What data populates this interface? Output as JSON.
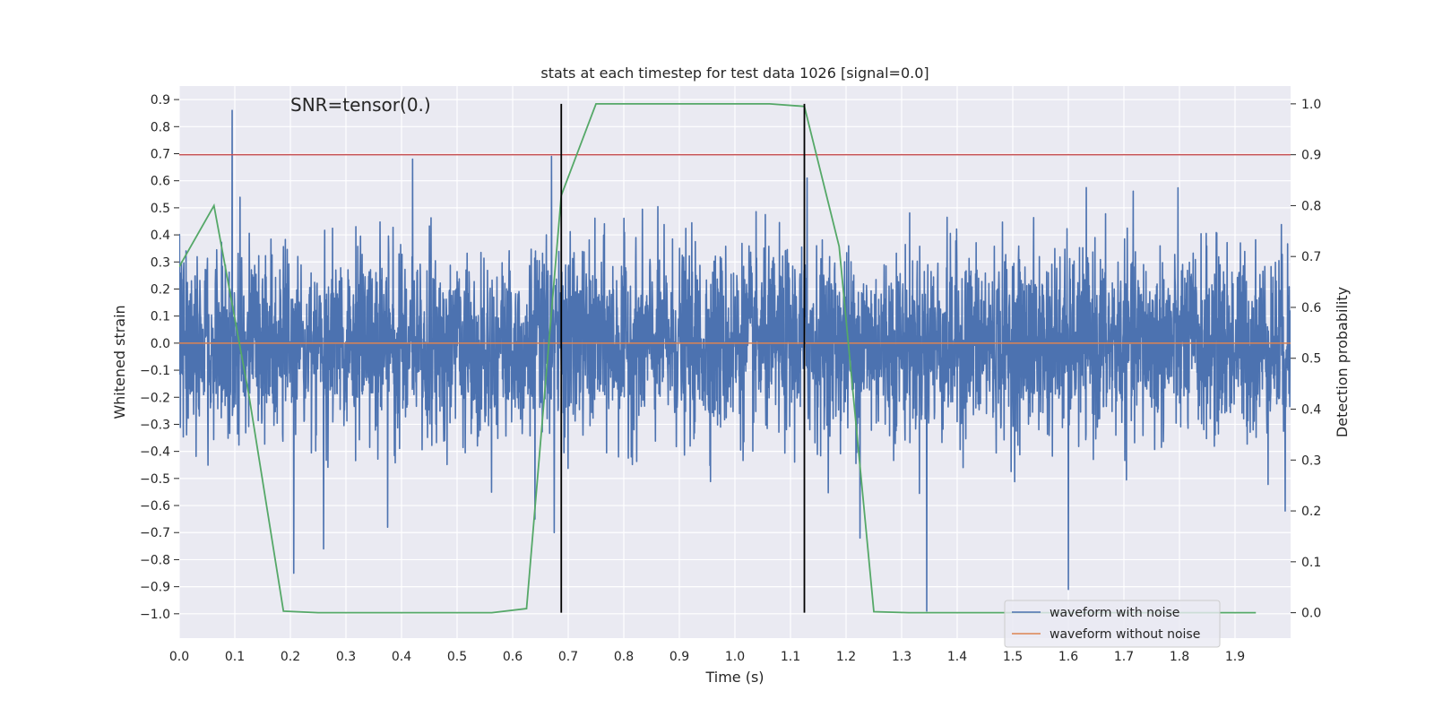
{
  "chart_data": {
    "type": "line",
    "title": "stats at each timestep for test data 1026 [signal=0.0]",
    "annotation": "SNR=tensor(0.)",
    "xlabel": "Time (s)",
    "ylabel": "Whitened strain",
    "y2label": "Detection probability",
    "xlim": [
      0.0,
      2.0
    ],
    "ylim": [
      -1.09,
      0.95
    ],
    "y2lim": [
      -0.05,
      1.035
    ],
    "x_ticks": [
      "0.0",
      "0.1",
      "0.2",
      "0.3",
      "0.4",
      "0.5",
      "0.6",
      "0.7",
      "0.8",
      "0.9",
      "1.0",
      "1.1",
      "1.2",
      "1.3",
      "1.4",
      "1.5",
      "1.6",
      "1.7",
      "1.8",
      "1.9"
    ],
    "y_ticks": [
      "0.9",
      "0.8",
      "0.7",
      "0.6",
      "0.5",
      "0.4",
      "0.3",
      "0.2",
      "0.1",
      "0.0",
      "−0.1",
      "−0.2",
      "−0.3",
      "−0.4",
      "−0.5",
      "−0.6",
      "−0.7",
      "−0.8",
      "−0.9",
      "−1.0"
    ],
    "y2_ticks": [
      "1.0",
      "0.9",
      "0.8",
      "0.7",
      "0.6",
      "0.5",
      "0.4",
      "0.3",
      "0.2",
      "0.1",
      "0.0"
    ],
    "grid": true,
    "legend_position": "lower-right",
    "series": [
      {
        "name": "waveform with noise",
        "color": "#4c72b0",
        "axis": "left",
        "duration": 2.0,
        "num_samples": 4096,
        "noise_amplitude": 0.17,
        "peaks": [
          {
            "x": 0.095,
            "y": 0.86
          },
          {
            "x": 0.206,
            "y": -0.85
          },
          {
            "x": 0.26,
            "y": -0.76
          },
          {
            "x": 0.375,
            "y": -0.68
          },
          {
            "x": 0.42,
            "y": 0.68
          },
          {
            "x": 0.67,
            "y": 0.69
          },
          {
            "x": 0.64,
            "y": -0.65
          },
          {
            "x": 0.675,
            "y": -0.7
          },
          {
            "x": 1.13,
            "y": 0.61
          },
          {
            "x": 1.225,
            "y": -0.72
          },
          {
            "x": 1.345,
            "y": -0.99
          },
          {
            "x": 1.6,
            "y": -0.91
          },
          {
            "x": 1.99,
            "y": -0.62
          }
        ]
      },
      {
        "name": "waveform without noise",
        "color": "#dd8452",
        "axis": "left",
        "x": [
          0.0,
          2.0
        ],
        "y": [
          0.0,
          0.0
        ]
      },
      {
        "name": "detection probability",
        "color": "#55a868",
        "axis": "right",
        "x": [
          0.0,
          0.0625,
          0.125,
          0.1875,
          0.25,
          0.3125,
          0.375,
          0.4375,
          0.5,
          0.5625,
          0.625,
          0.6875,
          0.75,
          0.8125,
          0.875,
          0.9375,
          1.0,
          1.0625,
          1.125,
          1.1875,
          1.25,
          1.3125,
          1.375,
          1.4375,
          1.5,
          1.5625,
          1.625,
          1.6875,
          1.75,
          1.8125,
          1.875,
          1.9375
        ],
        "y": [
          0.68,
          0.8,
          0.43,
          0.003,
          0.0,
          0.0,
          0.0,
          0.0,
          0.0,
          0.0,
          0.008,
          0.82,
          1.0,
          1.0,
          1.0,
          1.0,
          1.0,
          1.0,
          0.995,
          0.72,
          0.002,
          0.0,
          0.0,
          0.0,
          0.0,
          0.0,
          0.0,
          0.0,
          0.0,
          0.0,
          0.0,
          0.0
        ]
      }
    ],
    "threshold_line": {
      "y2": 0.9,
      "color": "#c44e52"
    },
    "vertical_markers": {
      "x": [
        0.6875,
        1.125
      ],
      "y2_range": [
        0.0,
        1.0
      ],
      "color": "#000000"
    },
    "legend": [
      "waveform with noise",
      "waveform without noise"
    ]
  }
}
